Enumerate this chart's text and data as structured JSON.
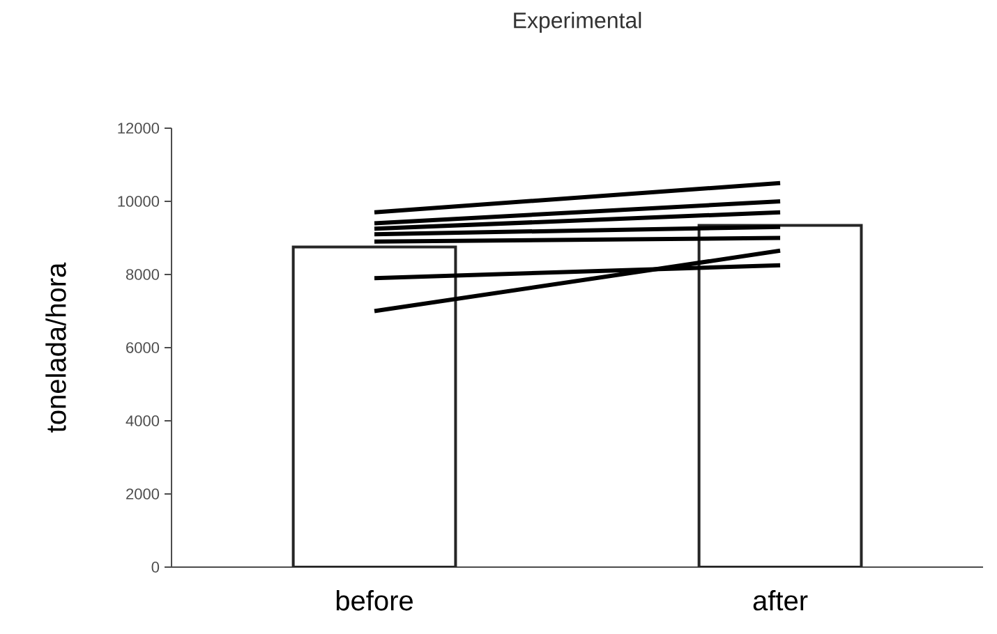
{
  "chart_data": {
    "type": "bar",
    "title": "Experimental",
    "ylabel": "tonelada/hora",
    "categories": [
      "before",
      "after"
    ],
    "ylim": [
      0,
      12000
    ],
    "yticks": [
      0,
      2000,
      4000,
      6000,
      8000,
      10000,
      12000
    ],
    "series": [
      {
        "color": "#ffffff",
        "values": [
          8750,
          9340
        ]
      },
      {
        "type": "line",
        "color": "#000000",
        "values": [
          9700,
          10500
        ]
      },
      {
        "type": "line",
        "color": "#000000",
        "values": [
          9400,
          10000
        ]
      },
      {
        "type": "line",
        "color": "#000000",
        "values": [
          9250,
          9700
        ]
      },
      {
        "type": "line",
        "color": "#000000",
        "values": [
          9100,
          9300
        ]
      },
      {
        "type": "line",
        "color": "#000000",
        "values": [
          8900,
          9000
        ]
      },
      {
        "type": "line",
        "color": "#000000",
        "values": [
          7900,
          8250
        ]
      },
      {
        "type": "line",
        "color": "#000000",
        "values": [
          7000,
          8650
        ]
      }
    ]
  }
}
